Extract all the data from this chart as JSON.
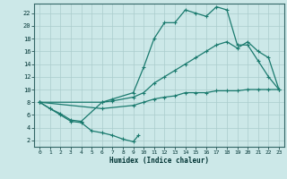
{
  "xlabel": "Humidex (Indice chaleur)",
  "bg_color": "#cce8e8",
  "grid_color": "#aacccc",
  "line_color": "#1a7a6e",
  "xlim": [
    -0.5,
    23.5
  ],
  "ylim": [
    1,
    23.5
  ],
  "xticks": [
    0,
    1,
    2,
    3,
    4,
    5,
    6,
    7,
    8,
    9,
    10,
    11,
    12,
    13,
    14,
    15,
    16,
    17,
    18,
    19,
    20,
    21,
    22,
    23
  ],
  "yticks": [
    2,
    4,
    6,
    8,
    10,
    12,
    14,
    16,
    18,
    20,
    22
  ],
  "line1_x": [
    0,
    1,
    2,
    3,
    4,
    5,
    6,
    7,
    8,
    9,
    9.5
  ],
  "line1_y": [
    8,
    7,
    6,
    5,
    4.8,
    3.5,
    3.2,
    2.8,
    2.2,
    1.8,
    2.8
  ],
  "line2_x": [
    0,
    1,
    2,
    3,
    4,
    6,
    7,
    9,
    10,
    11,
    12,
    13,
    14,
    15,
    16,
    17,
    18,
    19,
    20,
    21,
    22,
    23
  ],
  "line2_y": [
    8,
    7,
    6.2,
    5.2,
    5,
    8,
    8.5,
    9.5,
    13.5,
    18,
    20.5,
    20.5,
    22.5,
    22,
    21.5,
    23,
    22.5,
    17,
    17,
    14.5,
    12,
    10
  ],
  "line3_x": [
    0,
    6,
    7,
    9,
    10,
    11,
    12,
    13,
    14,
    15,
    16,
    17,
    18,
    19,
    20,
    21,
    22,
    23
  ],
  "line3_y": [
    8,
    8,
    8.2,
    8.8,
    9.5,
    11,
    12,
    13,
    14,
    15,
    16,
    17,
    17.5,
    16.5,
    17.5,
    16,
    15,
    10
  ],
  "line4_x": [
    0,
    6,
    9,
    10,
    11,
    12,
    13,
    14,
    15,
    16,
    17,
    18,
    19,
    20,
    21,
    22,
    23
  ],
  "line4_y": [
    8,
    7,
    7.5,
    8,
    8.5,
    8.8,
    9,
    9.5,
    9.5,
    9.5,
    9.8,
    9.8,
    9.8,
    10,
    10,
    10,
    10
  ]
}
